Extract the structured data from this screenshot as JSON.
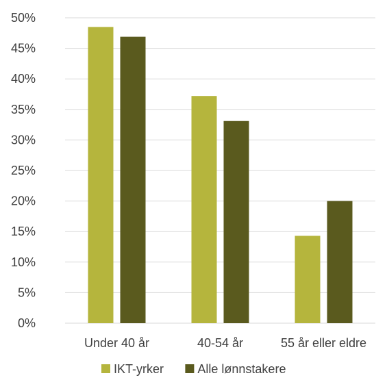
{
  "chart_data": {
    "type": "bar",
    "title": "",
    "xlabel": "",
    "ylabel": "",
    "categories": [
      "Under 40 år",
      "40-54 år",
      "55 år eller eldre"
    ],
    "series": [
      {
        "name": "IKT-yrker",
        "values": [
          48.5,
          37.2,
          14.3
        ],
        "color": "#b5b53d"
      },
      {
        "name": "Alle lønnstakere",
        "values": [
          46.9,
          33.1,
          20.0
        ],
        "color": "#5a5a1e"
      }
    ],
    "ylim": [
      0,
      50
    ],
    "yticks": [
      "0%",
      "5%",
      "10%",
      "15%",
      "20%",
      "25%",
      "30%",
      "35%",
      "40%",
      "45%",
      "50%"
    ],
    "grid": true,
    "legend_position": "bottom"
  }
}
